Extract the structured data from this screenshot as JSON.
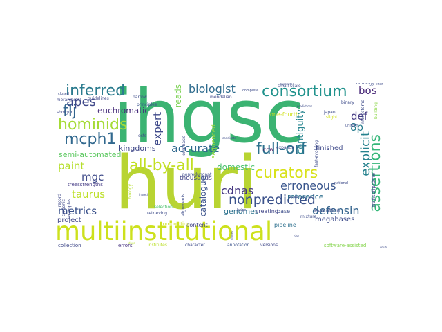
{
  "word_cloud": {
    "words": [
      {
        "text": "ihgsc",
        "color": "#3bb372"
      },
      {
        "text": "huri",
        "color": "#b8d432"
      },
      {
        "text": "multiinstitutional",
        "color": "#cde11d"
      },
      {
        "text": "consortium",
        "color": "#20928c"
      },
      {
        "text": "inferred",
        "color": "#2b7b8e"
      },
      {
        "text": "hominids",
        "color": "#a5db36"
      },
      {
        "text": "apes",
        "color": "#3f4889"
      },
      {
        "text": "flj",
        "color": "#32648e"
      },
      {
        "text": "mcph1",
        "color": "#31688e"
      },
      {
        "text": "biologist",
        "color": "#2f6c8e"
      },
      {
        "text": "euchromatic",
        "color": "#472d7b"
      },
      {
        "text": "all-by-all",
        "color": "#c2df23"
      },
      {
        "text": "full-orf",
        "color": "#2d718e"
      },
      {
        "text": "curators",
        "color": "#d8e219"
      },
      {
        "text": "assertions",
        "color": "#35b779"
      },
      {
        "text": "explicit",
        "color": "#26828e"
      },
      {
        "text": "nonpredicted",
        "color": "#3b528b"
      },
      {
        "text": "defensin",
        "color": "#33638d"
      },
      {
        "text": "erroneous",
        "color": "#39558c"
      },
      {
        "text": "cdnas",
        "color": "#453781"
      },
      {
        "text": "accurate",
        "color": "#31688e"
      },
      {
        "text": "expert",
        "color": "#3e4989"
      },
      {
        "text": "contiguity",
        "color": "#25848e"
      },
      {
        "text": "bos",
        "color": "#482878"
      },
      {
        "text": "def",
        "color": "#443983"
      },
      {
        "text": "8p",
        "color": "#287c8e"
      },
      {
        "text": "metrics",
        "color": "#3b528b"
      },
      {
        "text": "project",
        "color": "#404688"
      },
      {
        "text": "taurus",
        "color": "#bddf26"
      },
      {
        "text": "paint",
        "color": "#b5de2b"
      },
      {
        "text": "mgc",
        "color": "#3e4a89"
      },
      {
        "text": "kingdoms",
        "color": "#3f4788"
      },
      {
        "text": "semi-automated",
        "color": "#5ec962"
      },
      {
        "text": "reads",
        "color": "#7ad151"
      },
      {
        "text": "domestic",
        "color": "#4ac16d"
      },
      {
        "text": "catalogue",
        "color": "#3b528b"
      },
      {
        "text": "genomes",
        "color": "#2c728e"
      },
      {
        "text": "megabases",
        "color": "#3e4c8a"
      },
      {
        "text": "reference",
        "color": "#2e6f8e"
      },
      {
        "text": "finished",
        "color": "#3e4989"
      },
      {
        "text": "sequenced",
        "color": "#98d83e"
      },
      {
        "text": "one-fourth",
        "color": "#d0e11c"
      },
      {
        "text": "thousands",
        "color": "#414487"
      },
      {
        "text": "creating",
        "color": "#404588"
      },
      {
        "text": "base",
        "color": "#3d4e8a"
      },
      {
        "text": "cow",
        "color": "#440154"
      },
      {
        "text": "evolution",
        "color": "#3e4a89"
      },
      {
        "text": "pipeline",
        "color": "#2d708e"
      },
      {
        "text": "content",
        "color": "#414487"
      },
      {
        "text": "versions",
        "color": "#3f4889"
      },
      {
        "text": "annotation",
        "color": "#3b528b"
      },
      {
        "text": "character",
        "color": "#3e4c8a"
      },
      {
        "text": "errors",
        "color": "#46337f"
      },
      {
        "text": "institutes",
        "color": "#bade28"
      },
      {
        "text": "collection",
        "color": "#3f4889"
      },
      {
        "text": "software-assisted",
        "color": "#84d44b"
      },
      {
        "text": "transcriptome",
        "color": "#404588"
      },
      {
        "text": "treesstrengths",
        "color": "#443b84"
      },
      {
        "text": "guidelines",
        "color": "#3f4889"
      },
      {
        "text": "principles",
        "color": "#3b528b"
      },
      {
        "text": "hierarchical",
        "color": "#3f4889"
      },
      {
        "text": "shotgun",
        "color": "#3f4889"
      },
      {
        "text": "narrow",
        "color": "#3e4c8a"
      },
      {
        "text": "ests",
        "color": "#3f4889"
      },
      {
        "text": "small-scale",
        "color": "#3e4c8a"
      },
      {
        "text": "mendelian",
        "color": "#3f4889"
      },
      {
        "text": "complete",
        "color": "#3e4c8a"
      },
      {
        "text": "ontology",
        "color": "#3e4c8a"
      },
      {
        "text": "binary",
        "color": "#3e4c8a"
      },
      {
        "text": "japan",
        "color": "#3e4c8a"
      },
      {
        "text": "slight",
        "color": "#d2e21b"
      },
      {
        "text": "fast-evolving",
        "color": "#3e4c8a"
      },
      {
        "text": "interactome",
        "color": "#3e4c8a"
      },
      {
        "text": "building",
        "color": "#8bd646"
      },
      {
        "text": "uniform",
        "color": "#3e4c8a"
      },
      {
        "text": "national",
        "color": "#3e4c8a"
      },
      {
        "text": "record",
        "color": "#3f4889"
      },
      {
        "text": "syntenic",
        "color": "#3f4889"
      },
      {
        "text": "examples",
        "color": "#3f4889"
      },
      {
        "text": "compositing",
        "color": "#cde11d"
      },
      {
        "text": "selection",
        "color": "#4ac16d"
      },
      {
        "text": "retrieving",
        "color": "#3e4c8a"
      },
      {
        "text": "alignments",
        "color": "#3e4c8a"
      },
      {
        "text": "expands",
        "color": "#3e4c8a"
      },
      {
        "text": "mixture",
        "color": "#3e4c8a"
      },
      {
        "text": "emphasis",
        "color": "#3e4c8a"
      },
      {
        "text": "nonredundant",
        "color": "#3e4c8a"
      },
      {
        "text": "helps",
        "color": "#3e4c8a"
      },
      {
        "text": "candidate",
        "color": "#3e4c8a"
      },
      {
        "text": "clones",
        "color": "#3e4c8a"
      },
      {
        "text": "predictions",
        "color": "#3e4c8a"
      },
      {
        "text": "duplicated",
        "color": "#3e4c8a"
      },
      {
        "text": "effort",
        "color": "#3e4c8a"
      },
      {
        "text": "biology",
        "color": "#b5de2b"
      },
      {
        "text": "inbred",
        "color": "#3e4c8a"
      },
      {
        "text": "closed",
        "color": "#3e4c8a"
      },
      {
        "text": "dogs",
        "color": "#b5de2b"
      },
      {
        "text": "bias",
        "color": "#3e4c8a"
      },
      {
        "text": "double",
        "color": "#3e4c8a"
      }
    ]
  }
}
